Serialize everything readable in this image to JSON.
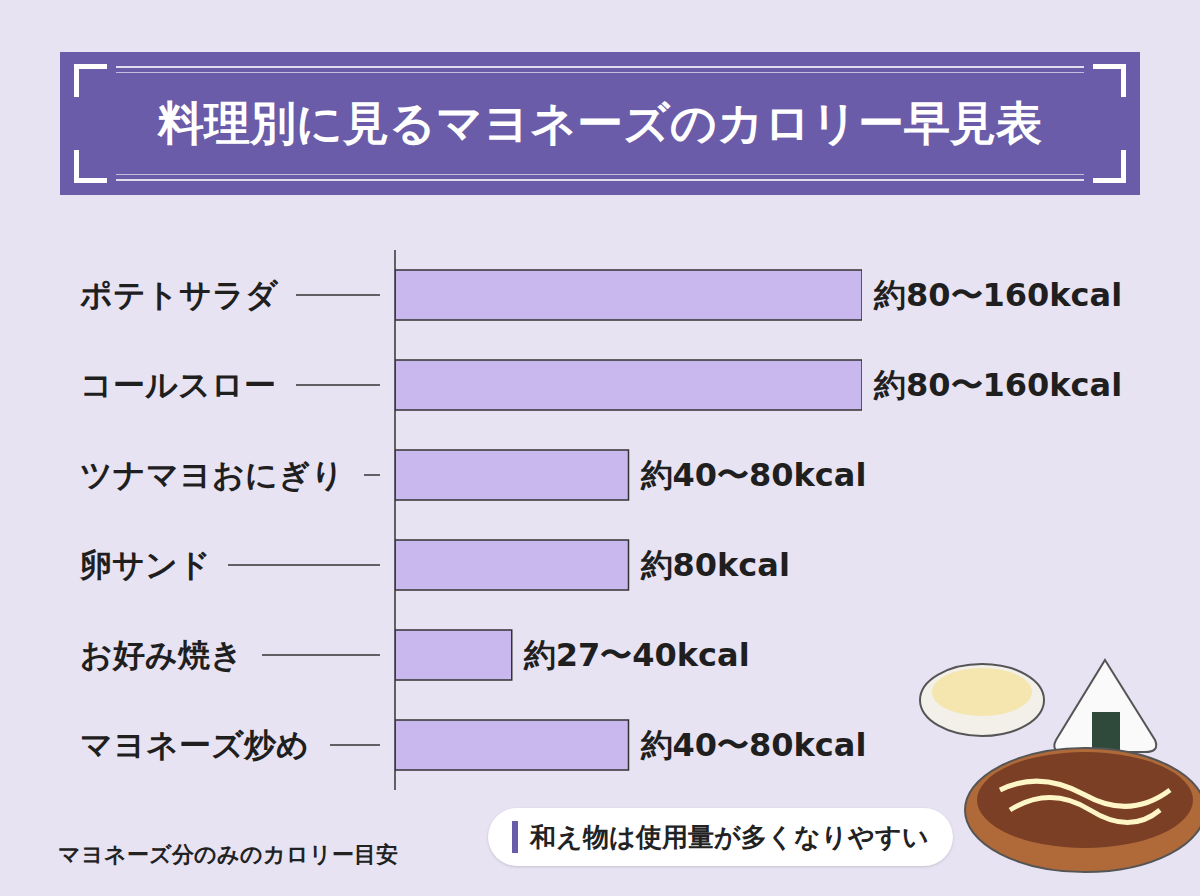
{
  "chart_data": {
    "type": "bar",
    "orientation": "horizontal",
    "title": "料理別に見るマヨネーズのカロリー早見表",
    "categories": [
      "ポテトサラダ",
      "コールスロー",
      "ツナマヨおにぎり",
      "卵サンド",
      "お好み焼き",
      "マヨネーズ炒め"
    ],
    "values": [
      160,
      160,
      80,
      80,
      40,
      80
    ],
    "value_labels": [
      "約80〜160kcal",
      "約80〜160kcal",
      "約40〜80kcal",
      "約80kcal",
      "約27〜40kcal",
      "約40〜80kcal"
    ],
    "color": "#c9b8ee",
    "xlim": [
      0,
      160
    ],
    "data_labels": true,
    "tick_labels": "y",
    "grid": false,
    "annotations": [
      "和え物は使用量が多くなりやすい"
    ],
    "footnote": "マヨネーズ分のみのカロリー目安"
  }
}
